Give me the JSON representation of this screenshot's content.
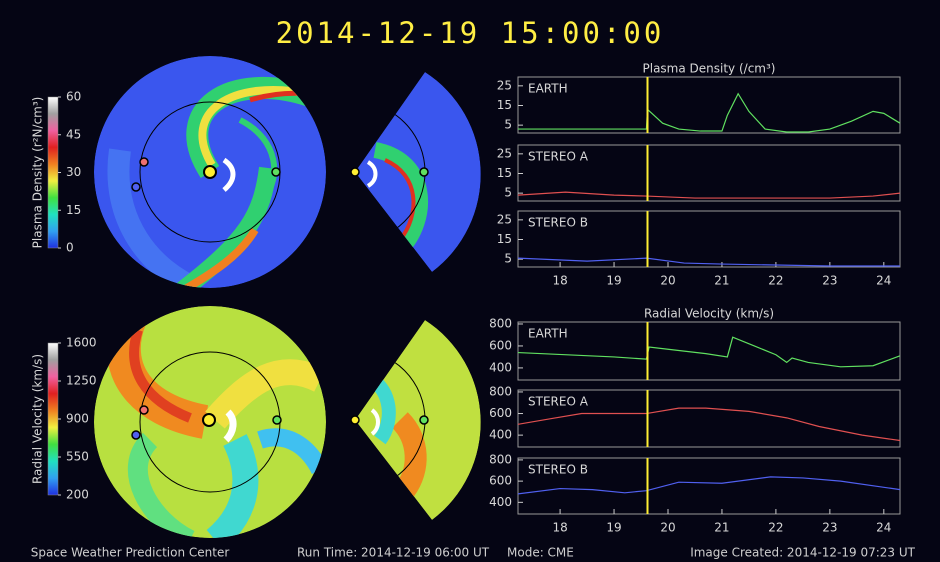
{
  "title": "2014-12-19  15:00:00",
  "footer": {
    "center": "Space Weather Prediction Center",
    "run_time": "Run Time: 2014-12-19 06:00 UT",
    "mode": "Mode: CME",
    "created": "Image Created: 2014-12-19 07:23 UT"
  },
  "chart_data": [
    {
      "type": "colorbar",
      "label": "Plasma Density (r²N/cm³)",
      "ylim": [
        0,
        60
      ],
      "yticks": [
        0,
        15,
        30,
        45,
        60
      ],
      "colors": [
        "#2030e0",
        "#30a0f0",
        "#20e0c0",
        "#40e040",
        "#f0f040",
        "#f08020",
        "#e02020",
        "#f060a0",
        "#a0a0a0",
        "#ffffff"
      ]
    },
    {
      "type": "colorbar",
      "label": "Radial Velocity (km/s)",
      "ylim": [
        200,
        1600
      ],
      "yticks": [
        200,
        550,
        900,
        1250,
        1600
      ],
      "colors": [
        "#2030e0",
        "#30a0f0",
        "#20e0c0",
        "#40e040",
        "#f0f040",
        "#f08020",
        "#e02020",
        "#f060a0",
        "#a0a0a0",
        "#ffffff"
      ]
    },
    {
      "type": "line",
      "title": "Plasma Density (/cm³)",
      "label": "EARTH",
      "color": "#60e060",
      "x": [
        17.22,
        18,
        19,
        19.6,
        19.62,
        19.7,
        19.9,
        20.2,
        20.6,
        21.0,
        21.1,
        21.3,
        21.5,
        21.8,
        22.2,
        22.6,
        23.0,
        23.4,
        23.8,
        24.0,
        24.3
      ],
      "values": [
        3,
        3,
        3,
        3,
        13,
        11,
        6,
        3,
        2,
        2,
        10,
        21,
        12,
        3,
        1.5,
        1.5,
        3,
        7,
        12,
        11,
        6
      ],
      "xlim": [
        17.22,
        24.3
      ],
      "ylim": [
        1,
        29.5
      ],
      "yticks": [
        5,
        15,
        25
      ],
      "vline": 19.62
    },
    {
      "type": "line",
      "label": "STEREO A",
      "color": "#e05050",
      "x": [
        17.22,
        18.1,
        19,
        19.6,
        20.5,
        22,
        23,
        23.8,
        24.3
      ],
      "values": [
        4,
        5.5,
        4,
        3.5,
        2.5,
        2.5,
        2.5,
        3.5,
        5
      ],
      "xlim": [
        17.22,
        24.3
      ],
      "ylim": [
        1,
        29.5
      ],
      "yticks": [
        5,
        15,
        25
      ],
      "vline": 19.62
    },
    {
      "type": "line",
      "label": "STEREO B",
      "color": "#5060f0",
      "x": [
        17.22,
        18.5,
        19.6,
        20.3,
        21,
        22,
        23,
        24.3
      ],
      "values": [
        5.5,
        4,
        5.5,
        3,
        2.5,
        2,
        1.5,
        1.5
      ],
      "xlim": [
        17.22,
        24.3
      ],
      "ylim": [
        1,
        29.5
      ],
      "yticks": [
        5,
        15,
        25
      ],
      "xticks": [
        18,
        19,
        20,
        21,
        22,
        23,
        24
      ],
      "vline": 19.62
    },
    {
      "type": "line",
      "title": "Radial Velocity (km/s)",
      "label": "EARTH",
      "color": "#60e060",
      "x": [
        17.22,
        19,
        19.6,
        19.65,
        20,
        20.7,
        21.1,
        21.2,
        21.6,
        22,
        22.2,
        22.3,
        22.6,
        23.2,
        23.8,
        24.3
      ],
      "values": [
        540,
        500,
        480,
        590,
        570,
        530,
        500,
        680,
        600,
        520,
        450,
        490,
        450,
        410,
        420,
        510
      ],
      "xlim": [
        17.22,
        24.3
      ],
      "ylim": [
        290,
        818
      ],
      "yticks": [
        400,
        600,
        800
      ],
      "vline": 19.62
    },
    {
      "type": "line",
      "label": "STEREO A",
      "color": "#e05050",
      "x": [
        17.22,
        17.8,
        18.4,
        19.6,
        20.2,
        20.7,
        21.5,
        22.2,
        22.8,
        23.6,
        24.3
      ],
      "values": [
        500,
        550,
        600,
        600,
        650,
        650,
        620,
        560,
        480,
        400,
        350
      ],
      "xlim": [
        17.22,
        24.3
      ],
      "ylim": [
        290,
        818
      ],
      "yticks": [
        400,
        600,
        800
      ],
      "vline": 19.62
    },
    {
      "type": "line",
      "label": "STEREO B",
      "color": "#5060f0",
      "x": [
        17.22,
        18,
        18.6,
        19.2,
        19.6,
        20.2,
        21,
        21.9,
        22.5,
        23.2,
        24.3
      ],
      "values": [
        480,
        530,
        520,
        490,
        510,
        590,
        580,
        640,
        630,
        600,
        520
      ],
      "xlim": [
        17.22,
        24.3
      ],
      "ylim": [
        290,
        818
      ],
      "yticks": [
        400,
        600,
        800
      ],
      "xticks": [
        18,
        19,
        20,
        21,
        22,
        23,
        24
      ],
      "vline": 19.62
    }
  ]
}
